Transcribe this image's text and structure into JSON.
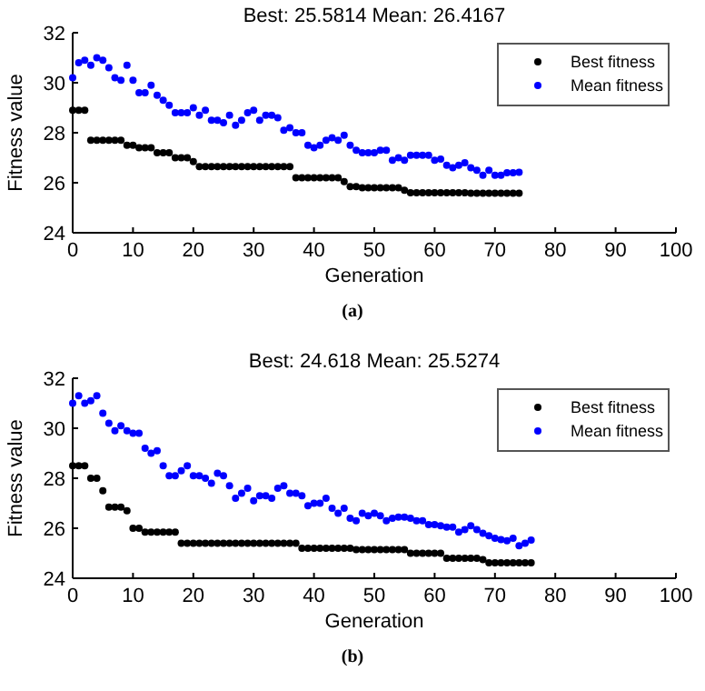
{
  "chart_data": [
    {
      "type": "scatter",
      "title": "Best: 25.5814 Mean: 26.4167",
      "xlabel": "Generation",
      "ylabel": "Fitness value",
      "annotations": [
        "(a)"
      ],
      "marker": "circle",
      "legend": "top right",
      "grid": false,
      "xlim": [
        0,
        100
      ],
      "xticks": [
        0,
        10,
        20,
        30,
        40,
        50,
        60,
        70,
        80,
        90,
        100
      ],
      "ylim": [
        24,
        32
      ],
      "yticks": [
        24,
        26,
        28,
        30,
        32
      ],
      "x": [
        0,
        1,
        2,
        3,
        4,
        5,
        6,
        7,
        8,
        9,
        10,
        11,
        12,
        13,
        14,
        15,
        16,
        17,
        18,
        19,
        20,
        21,
        22,
        23,
        24,
        25,
        26,
        27,
        28,
        29,
        30,
        31,
        32,
        33,
        34,
        35,
        36,
        37,
        38,
        39,
        40,
        41,
        42,
        43,
        44,
        45,
        46,
        47,
        48,
        49,
        50,
        51,
        52,
        53,
        54,
        55,
        56,
        57,
        58,
        59,
        60,
        61,
        62,
        63,
        64,
        65,
        66,
        67,
        68,
        69,
        70,
        71,
        72,
        73,
        74
      ],
      "series": [
        {
          "name": "Best fitness",
          "color": "#000000",
          "values": [
            28.9,
            28.9,
            28.9,
            27.7,
            27.7,
            27.7,
            27.7,
            27.7,
            27.7,
            27.5,
            27.5,
            27.4,
            27.4,
            27.4,
            27.2,
            27.2,
            27.2,
            27.0,
            27.0,
            27.0,
            26.85,
            26.65,
            26.65,
            26.65,
            26.65,
            26.65,
            26.65,
            26.65,
            26.65,
            26.65,
            26.65,
            26.65,
            26.65,
            26.65,
            26.65,
            26.65,
            26.65,
            26.2,
            26.2,
            26.2,
            26.2,
            26.2,
            26.2,
            26.2,
            26.2,
            26.05,
            25.85,
            25.85,
            25.8,
            25.8,
            25.8,
            25.8,
            25.8,
            25.8,
            25.8,
            25.7,
            25.6,
            25.6,
            25.6,
            25.6,
            25.6,
            25.6,
            25.6,
            25.6,
            25.6,
            25.6,
            25.58,
            25.58,
            25.58,
            25.58,
            25.58,
            25.58,
            25.58,
            25.58,
            25.58
          ]
        },
        {
          "name": "Mean fitness",
          "color": "#0000ff",
          "values": [
            30.2,
            30.8,
            30.9,
            30.7,
            31.0,
            30.9,
            30.6,
            30.2,
            30.1,
            30.7,
            30.1,
            29.6,
            29.6,
            29.9,
            29.5,
            29.3,
            29.1,
            28.8,
            28.8,
            28.8,
            29.0,
            28.7,
            28.9,
            28.5,
            28.5,
            28.4,
            28.7,
            28.3,
            28.5,
            28.8,
            28.9,
            28.5,
            28.7,
            28.7,
            28.6,
            28.1,
            28.2,
            28.0,
            28.0,
            27.5,
            27.4,
            27.5,
            27.7,
            27.8,
            27.7,
            27.9,
            27.5,
            27.3,
            27.2,
            27.2,
            27.2,
            27.3,
            27.3,
            26.9,
            27.0,
            26.9,
            27.1,
            27.1,
            27.1,
            27.1,
            26.9,
            26.95,
            26.7,
            26.6,
            26.7,
            26.8,
            26.6,
            26.5,
            26.3,
            26.5,
            26.3,
            26.3,
            26.4,
            26.4,
            26.42
          ]
        }
      ]
    },
    {
      "type": "scatter",
      "title": "Best: 24.618 Mean: 25.5274",
      "xlabel": "Generation",
      "ylabel": "Fitness value",
      "annotations": [
        "(b)"
      ],
      "marker": "circle",
      "legend": "top right",
      "grid": false,
      "xlim": [
        0,
        100
      ],
      "xticks": [
        0,
        10,
        20,
        30,
        40,
        50,
        60,
        70,
        80,
        90,
        100
      ],
      "ylim": [
        24,
        32
      ],
      "yticks": [
        24,
        26,
        28,
        30,
        32
      ],
      "x": [
        0,
        1,
        2,
        3,
        4,
        5,
        6,
        7,
        8,
        9,
        10,
        11,
        12,
        13,
        14,
        15,
        16,
        17,
        18,
        19,
        20,
        21,
        22,
        23,
        24,
        25,
        26,
        27,
        28,
        29,
        30,
        31,
        32,
        33,
        34,
        35,
        36,
        37,
        38,
        39,
        40,
        41,
        42,
        43,
        44,
        45,
        46,
        47,
        48,
        49,
        50,
        51,
        52,
        53,
        54,
        55,
        56,
        57,
        58,
        59,
        60,
        61,
        62,
        63,
        64,
        65,
        66,
        67,
        68,
        69,
        70,
        71,
        72,
        73,
        74,
        75,
        76
      ],
      "series": [
        {
          "name": "Best fitness",
          "color": "#000000",
          "values": [
            28.5,
            28.5,
            28.5,
            28.0,
            28.0,
            27.5,
            26.85,
            26.85,
            26.85,
            26.7,
            26.0,
            26.0,
            25.85,
            25.85,
            25.85,
            25.85,
            25.85,
            25.85,
            25.4,
            25.4,
            25.4,
            25.4,
            25.4,
            25.4,
            25.4,
            25.4,
            25.4,
            25.4,
            25.4,
            25.4,
            25.4,
            25.4,
            25.4,
            25.4,
            25.4,
            25.4,
            25.4,
            25.4,
            25.2,
            25.2,
            25.2,
            25.2,
            25.2,
            25.2,
            25.2,
            25.2,
            25.2,
            25.15,
            25.15,
            25.15,
            25.15,
            25.15,
            25.15,
            25.15,
            25.15,
            25.15,
            25.0,
            25.0,
            25.0,
            25.0,
            25.0,
            25.0,
            24.8,
            24.8,
            24.8,
            24.8,
            24.8,
            24.8,
            24.75,
            24.62,
            24.62,
            24.62,
            24.62,
            24.62,
            24.62,
            24.62,
            24.62
          ]
        },
        {
          "name": "Mean fitness",
          "color": "#0000ff",
          "values": [
            31.0,
            31.3,
            31.0,
            31.1,
            31.3,
            30.6,
            30.2,
            29.9,
            30.1,
            29.9,
            29.8,
            29.8,
            29.2,
            29.0,
            29.1,
            28.5,
            28.1,
            28.1,
            28.3,
            28.5,
            28.1,
            28.1,
            28.0,
            27.8,
            28.2,
            28.1,
            27.7,
            27.2,
            27.4,
            27.6,
            27.1,
            27.3,
            27.3,
            27.2,
            27.6,
            27.7,
            27.4,
            27.4,
            27.3,
            26.9,
            27.0,
            27.0,
            27.2,
            26.8,
            26.6,
            26.8,
            26.4,
            26.3,
            26.6,
            26.5,
            26.6,
            26.5,
            26.3,
            26.4,
            26.45,
            26.45,
            26.4,
            26.3,
            26.3,
            26.15,
            26.15,
            26.1,
            26.05,
            26.05,
            25.85,
            25.95,
            26.1,
            25.95,
            25.8,
            25.7,
            25.6,
            25.55,
            25.5,
            25.6,
            25.3,
            25.4,
            25.53
          ]
        }
      ]
    }
  ]
}
